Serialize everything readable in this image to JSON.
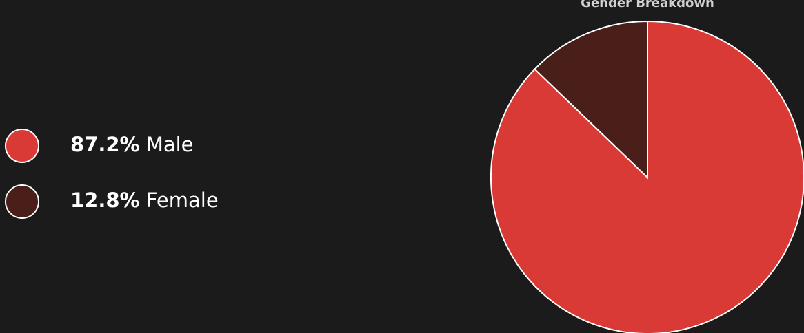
{
  "chart_data": {
    "type": "pie",
    "title": "Gender Breakdown",
    "categories": [
      "Male",
      "Female"
    ],
    "values": [
      87.2,
      12.8
    ],
    "value_labels": [
      "87.2%",
      "12.8%"
    ],
    "colors": [
      "#d93a35",
      "#4a1e19"
    ]
  }
}
